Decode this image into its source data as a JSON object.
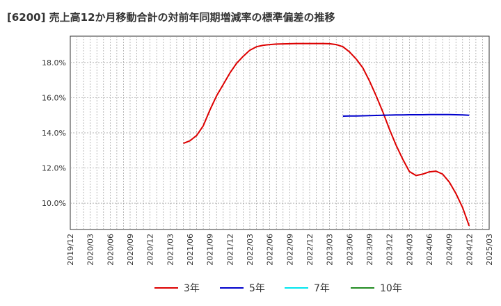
{
  "chart_data": {
    "type": "line",
    "title": "[6200]  売上高12か月移動合計の対前年同期増減率の標準偏差の推移",
    "xlabel": "",
    "ylabel": "",
    "ylim": [
      8.5,
      19.5
    ],
    "y_ticks": [
      10.0,
      12.0,
      14.0,
      16.0,
      18.0
    ],
    "y_tick_labels": [
      "10.0%",
      "12.0%",
      "14.0%",
      "16.0%",
      "18.0%"
    ],
    "x_range": [
      "2019-12",
      "2025-03"
    ],
    "x_tick_labels": [
      "2019/12",
      "2020/03",
      "2020/06",
      "2020/09",
      "2020/12",
      "2021/03",
      "2021/06",
      "2021/09",
      "2021/12",
      "2022/03",
      "2022/06",
      "2022/09",
      "2022/12",
      "2023/03",
      "2023/06",
      "2023/09",
      "2023/12",
      "2024/03",
      "2024/06",
      "2024/09",
      "2024/12",
      "2025/03"
    ],
    "grid": true,
    "legend_position": "bottom",
    "series": [
      {
        "name": "3年",
        "color": "#dd0000",
        "points": [
          [
            "2021-05",
            13.4
          ],
          [
            "2021-06",
            13.55
          ],
          [
            "2021-07",
            13.85
          ],
          [
            "2021-08",
            14.4
          ],
          [
            "2021-09",
            15.3
          ],
          [
            "2021-10",
            16.1
          ],
          [
            "2021-11",
            16.75
          ],
          [
            "2021-12",
            17.4
          ],
          [
            "2022-01",
            17.95
          ],
          [
            "2022-02",
            18.35
          ],
          [
            "2022-03",
            18.7
          ],
          [
            "2022-04",
            18.9
          ],
          [
            "2022-05",
            18.98
          ],
          [
            "2022-06",
            19.02
          ],
          [
            "2022-07",
            19.05
          ],
          [
            "2022-08",
            19.06
          ],
          [
            "2022-09",
            19.07
          ],
          [
            "2022-10",
            19.08
          ],
          [
            "2022-11",
            19.08
          ],
          [
            "2022-12",
            19.08
          ],
          [
            "2023-01",
            19.08
          ],
          [
            "2023-02",
            19.08
          ],
          [
            "2023-03",
            19.07
          ],
          [
            "2023-04",
            19.02
          ],
          [
            "2023-05",
            18.9
          ],
          [
            "2023-06",
            18.6
          ],
          [
            "2023-07",
            18.2
          ],
          [
            "2023-08",
            17.7
          ],
          [
            "2023-09",
            16.95
          ],
          [
            "2023-10",
            16.1
          ],
          [
            "2023-11",
            15.2
          ],
          [
            "2023-12",
            14.2
          ],
          [
            "2024-01",
            13.3
          ],
          [
            "2024-02",
            12.5
          ],
          [
            "2024-03",
            11.8
          ],
          [
            "2024-04",
            11.57
          ],
          [
            "2024-05",
            11.65
          ],
          [
            "2024-06",
            11.78
          ],
          [
            "2024-07",
            11.82
          ],
          [
            "2024-08",
            11.65
          ],
          [
            "2024-09",
            11.2
          ],
          [
            "2024-10",
            10.55
          ],
          [
            "2024-11",
            9.75
          ],
          [
            "2024-12",
            8.7
          ]
        ]
      },
      {
        "name": "5年",
        "color": "#0000cc",
        "points": [
          [
            "2023-05",
            14.95
          ],
          [
            "2023-06",
            14.96
          ],
          [
            "2023-07",
            14.96
          ],
          [
            "2023-08",
            14.97
          ],
          [
            "2023-09",
            14.98
          ],
          [
            "2023-10",
            14.99
          ],
          [
            "2023-11",
            15.0
          ],
          [
            "2023-12",
            15.01
          ],
          [
            "2024-01",
            15.02
          ],
          [
            "2024-02",
            15.02
          ],
          [
            "2024-03",
            15.03
          ],
          [
            "2024-04",
            15.03
          ],
          [
            "2024-05",
            15.03
          ],
          [
            "2024-06",
            15.04
          ],
          [
            "2024-07",
            15.04
          ],
          [
            "2024-08",
            15.04
          ],
          [
            "2024-09",
            15.04
          ],
          [
            "2024-10",
            15.03
          ],
          [
            "2024-11",
            15.02
          ],
          [
            "2024-12",
            15.0
          ]
        ]
      },
      {
        "name": "7年",
        "color": "#00e5ee",
        "points": []
      },
      {
        "name": "10年",
        "color": "#228b22",
        "points": []
      }
    ]
  }
}
